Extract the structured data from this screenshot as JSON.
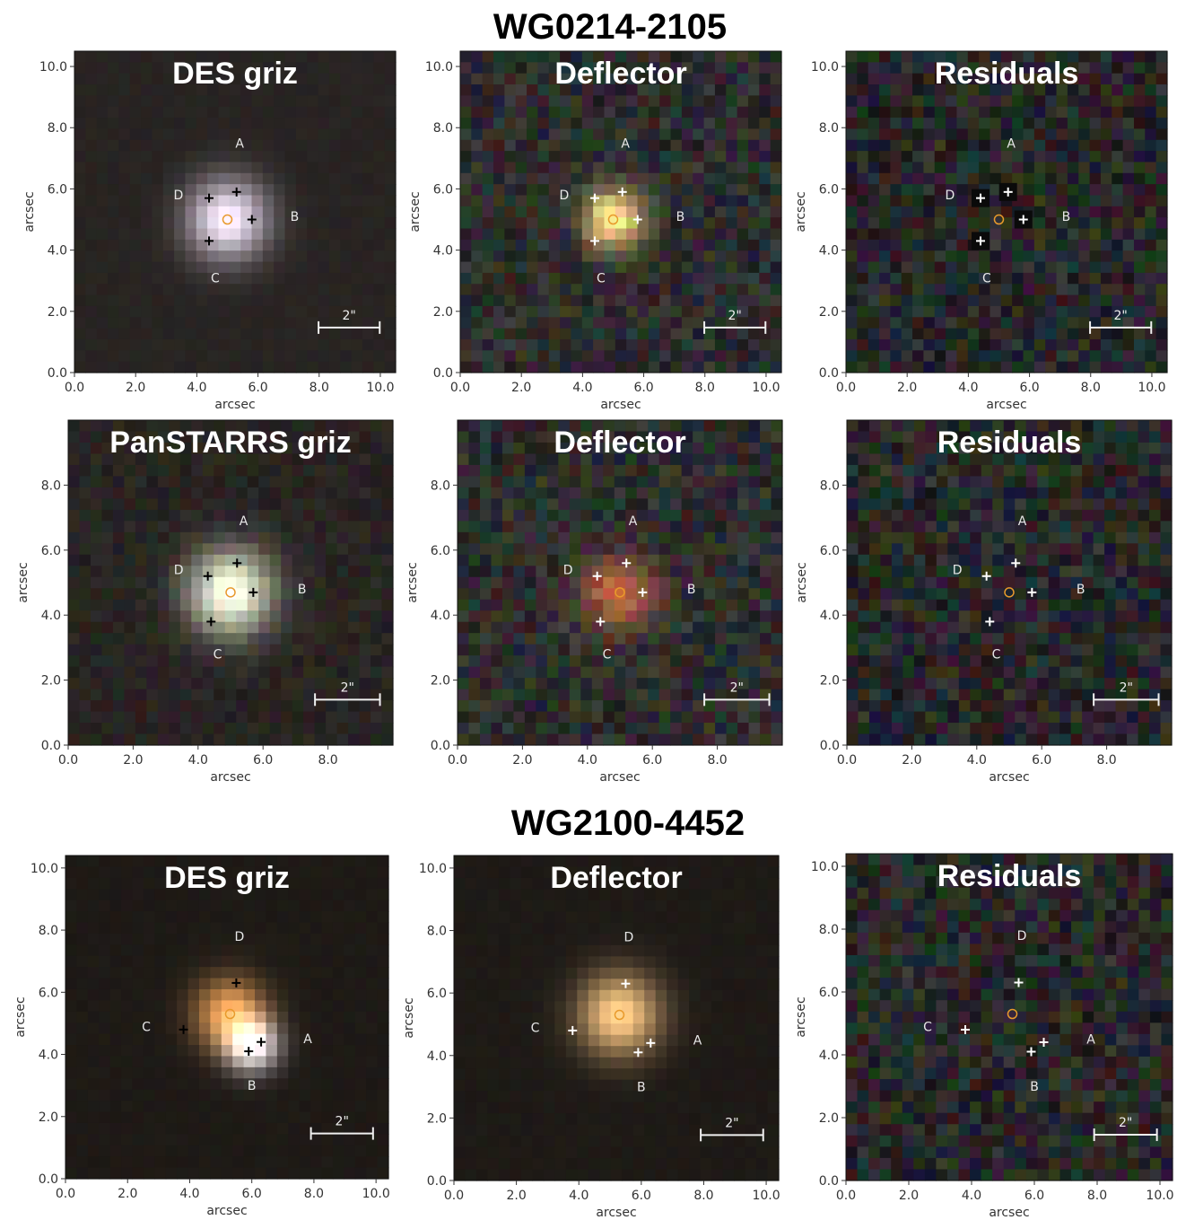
{
  "sections": [
    {
      "title": "WG0214-2105",
      "rows": [
        {
          "yticks": [
            "0.0",
            "2.0",
            "4.0",
            "6.0",
            "8.0",
            "10.0"
          ],
          "xticks": [
            "0.0",
            "2.0",
            "4.0",
            "6.0",
            "8.0",
            "10.0"
          ],
          "panels": [
            {
              "title": "DES griz",
              "type": "des",
              "marker": "black",
              "bg": "#2a2420",
              "image_labels": {
                "A": [
                  5.4,
                  7.5
                ],
                "B": [
                  7.2,
                  5.1
                ],
                "C": [
                  4.6,
                  3.1
                ],
                "D": [
                  3.4,
                  5.8
                ]
              },
              "images": [
                [
                  4.4,
                  5.7
                ],
                [
                  5.3,
                  5.9
                ],
                [
                  5.8,
                  5.0
                ],
                [
                  4.4,
                  4.3
                ]
              ],
              "center": [
                5.0,
                5.0
              ]
            },
            {
              "title": "Deflector",
              "type": "defl",
              "marker": "white",
              "bg": "#2a2a2a",
              "image_labels": {
                "A": [
                  5.4,
                  7.5
                ],
                "B": [
                  7.2,
                  5.1
                ],
                "C": [
                  4.6,
                  3.1
                ],
                "D": [
                  3.4,
                  5.8
                ]
              },
              "images": [
                [
                  4.4,
                  5.7
                ],
                [
                  5.3,
                  5.9
                ],
                [
                  5.8,
                  5.0
                ],
                [
                  4.4,
                  4.3
                ]
              ],
              "center": [
                5.0,
                5.0
              ]
            },
            {
              "title": "Residuals",
              "type": "resid",
              "marker": "white",
              "bg": "#262626",
              "image_labels": {
                "A": [
                  5.4,
                  7.5
                ],
                "B": [
                  7.2,
                  5.1
                ],
                "C": [
                  4.6,
                  3.1
                ],
                "D": [
                  3.4,
                  5.8
                ]
              },
              "images": [
                [
                  4.4,
                  5.7
                ],
                [
                  5.3,
                  5.9
                ],
                [
                  5.8,
                  5.0
                ],
                [
                  4.4,
                  4.3
                ]
              ],
              "center": [
                5.0,
                5.0
              ]
            }
          ],
          "scale_label": "2\"",
          "axis_label": "arcsec"
        },
        {
          "yticks": [
            "0.0",
            "2.0",
            "4.0",
            "6.0",
            "8.0"
          ],
          "xticks": [
            "0.0",
            "2.0",
            "4.0",
            "6.0",
            "8.0"
          ],
          "panels": [
            {
              "title": "PanSTARRS griz",
              "type": "ps",
              "marker": "black",
              "bg": "#2a2723",
              "image_labels": {
                "A": [
                  5.4,
                  6.9
                ],
                "B": [
                  7.2,
                  4.8
                ],
                "C": [
                  4.6,
                  2.8
                ],
                "D": [
                  3.4,
                  5.4
                ]
              },
              "images": [
                [
                  4.3,
                  5.2
                ],
                [
                  5.2,
                  5.6
                ],
                [
                  5.7,
                  4.7
                ],
                [
                  4.4,
                  3.8
                ]
              ],
              "center": [
                5.0,
                4.7
              ]
            },
            {
              "title": "Deflector",
              "type": "psdefl",
              "marker": "white",
              "bg": "#2a2a2a",
              "image_labels": {
                "A": [
                  5.4,
                  6.9
                ],
                "B": [
                  7.2,
                  4.8
                ],
                "C": [
                  4.6,
                  2.8
                ],
                "D": [
                  3.4,
                  5.4
                ]
              },
              "images": [
                [
                  4.3,
                  5.2
                ],
                [
                  5.2,
                  5.6
                ],
                [
                  5.7,
                  4.7
                ],
                [
                  4.4,
                  3.8
                ]
              ],
              "center": [
                5.0,
                4.7
              ]
            },
            {
              "title": "Residuals",
              "type": "resid",
              "marker": "white",
              "bg": "#262626",
              "image_labels": {
                "A": [
                  5.4,
                  6.9
                ],
                "B": [
                  7.2,
                  4.8
                ],
                "C": [
                  4.6,
                  2.8
                ],
                "D": [
                  3.4,
                  5.4
                ]
              },
              "images": [
                [
                  4.3,
                  5.2
                ],
                [
                  5.2,
                  5.6
                ],
                [
                  5.7,
                  4.7
                ],
                [
                  4.4,
                  3.8
                ]
              ],
              "center": [
                5.0,
                4.7
              ]
            }
          ],
          "scale_label": "2\"",
          "axis_label": "arcsec"
        }
      ]
    },
    {
      "title": "WG2100-4452",
      "rows": [
        {
          "yticks": [
            "0.0",
            "2.0",
            "4.0",
            "6.0",
            "8.0",
            "10.0"
          ],
          "xticks": [
            "0.0",
            "2.0",
            "4.0",
            "6.0",
            "8.0",
            "10.0"
          ],
          "panels": [
            {
              "title": "DES griz",
              "type": "des2",
              "marker": "black",
              "bg": "#1e1a17",
              "image_labels": {
                "A": [
                  7.8,
                  4.5
                ],
                "B": [
                  6.0,
                  3.0
                ],
                "C": [
                  2.6,
                  4.9
                ],
                "D": [
                  5.6,
                  7.8
                ]
              },
              "images": [
                [
                  5.5,
                  6.3
                ],
                [
                  3.8,
                  4.8
                ],
                [
                  5.9,
                  4.1
                ],
                [
                  6.3,
                  4.4
                ]
              ],
              "center": [
                5.3,
                5.3
              ]
            },
            {
              "title": "Deflector",
              "type": "defl2",
              "marker": "white",
              "bg": "#1e1a17",
              "image_labels": {
                "A": [
                  7.8,
                  4.5
                ],
                "B": [
                  6.0,
                  3.0
                ],
                "C": [
                  2.6,
                  4.9
                ],
                "D": [
                  5.6,
                  7.8
                ]
              },
              "images": [
                [
                  5.5,
                  6.3
                ],
                [
                  3.8,
                  4.8
                ],
                [
                  5.9,
                  4.1
                ],
                [
                  6.3,
                  4.4
                ]
              ],
              "center": [
                5.3,
                5.3
              ]
            },
            {
              "title": "Residuals",
              "type": "resid2",
              "marker": "white",
              "bg": "#232323",
              "image_labels": {
                "A": [
                  7.8,
                  4.5
                ],
                "B": [
                  6.0,
                  3.0
                ],
                "C": [
                  2.6,
                  4.9
                ],
                "D": [
                  5.6,
                  7.8
                ]
              },
              "images": [
                [
                  5.5,
                  6.3
                ],
                [
                  3.8,
                  4.8
                ],
                [
                  5.9,
                  4.1
                ],
                [
                  6.3,
                  4.4
                ]
              ],
              "center": [
                5.3,
                5.3
              ]
            }
          ],
          "scale_label": "2\"",
          "axis_label": "arcsec"
        }
      ]
    }
  ]
}
